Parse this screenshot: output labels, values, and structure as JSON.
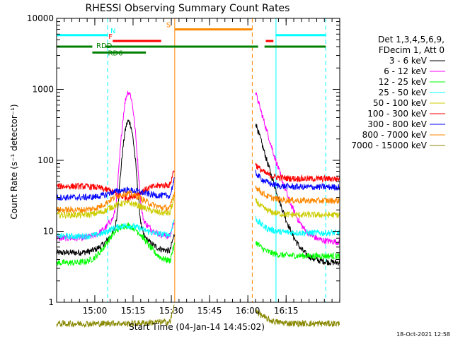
{
  "chart_data": {
    "type": "line",
    "title": "RHESSI Observing Summary Count Rates",
    "xlabel": "Start Time (04-Jan-14 14:45:02)",
    "ylabel": "Count Rate (s⁻¹ detector⁻¹)",
    "yscale": "log",
    "ylim": [
      1,
      10000
    ],
    "xlim_minutes_from_start": [
      0,
      111
    ],
    "x_ticks": [
      {
        "label": "15:00",
        "minute": 14.97
      },
      {
        "label": "15:15",
        "minute": 29.97
      },
      {
        "label": "15:30",
        "minute": 44.97
      },
      {
        "label": "15:45",
        "minute": 59.97
      },
      {
        "label": "16:00",
        "minute": 74.97
      },
      {
        "label": "16:15",
        "minute": 89.97
      }
    ],
    "y_ticks": [
      {
        "label": "1",
        "value": 1
      },
      {
        "label": "10",
        "value": 10
      },
      {
        "label": "100",
        "value": 100
      },
      {
        "label": "1000",
        "value": 1000
      },
      {
        "label": "10000",
        "value": 10000
      }
    ],
    "legend_header": [
      "Det 1,3,4,5,6,9,",
      "FDecim 1, Att 0"
    ],
    "legend_position": "right",
    "series": [
      {
        "name": "3 - 6 keV",
        "color": "#000000",
        "base_pre": 5,
        "base_post": 3.6,
        "peak": 380
      },
      {
        "name": "6 - 12 keV",
        "color": "#ff00ff",
        "base_pre": 8,
        "base_post": 7,
        "peak": 1000
      },
      {
        "name": "12 - 25 keV",
        "color": "#00ff00",
        "base_pre": 3.6,
        "base_post": 4.5,
        "peak": 12
      },
      {
        "name": "25 - 50 keV",
        "color": "#00ffff",
        "base_pre": 8.5,
        "base_post": 9.5,
        "peak": 12
      },
      {
        "name": "50 - 100 keV",
        "color": "#cccc00",
        "base_pre": 17,
        "base_post": 17,
        "peak": 25
      },
      {
        "name": "100 - 300 keV",
        "color": "#ff0000",
        "base_pre": 43,
        "base_post": 55,
        "peak": 30
      },
      {
        "name": "300 - 800 keV",
        "color": "#0000ff",
        "base_pre": 30,
        "base_post": 42,
        "peak": 38
      },
      {
        "name": "800 - 7000 keV",
        "color": "#ff8800",
        "base_pre": 20,
        "base_post": 27,
        "peak": 34
      },
      {
        "name": "7000 - 15000 keV",
        "color": "#888800",
        "base_pre": 0.5,
        "base_post": 0.5,
        "peak": 0.5
      }
    ],
    "vertical_markers": [
      {
        "minute": 0,
        "color": "#00ffff",
        "style": "solid"
      },
      {
        "minute": 20.0,
        "color": "#00ffff",
        "style": "dashed"
      },
      {
        "minute": 46.3,
        "color": "#ff8800",
        "style": "solid"
      },
      {
        "minute": 76.7,
        "color": "#ff8800",
        "style": "dashed"
      },
      {
        "minute": 86.0,
        "color": "#00ffff",
        "style": "solid"
      },
      {
        "minute": 105.5,
        "color": "#00ffff",
        "style": "dashed"
      }
    ],
    "state_bars": [
      {
        "label": "N",
        "color": "#00ffff",
        "value": 5800,
        "segments": [
          [
            0,
            20.0
          ],
          [
            86.0,
            105.5
          ]
        ]
      },
      {
        "label": "F",
        "color": "#ff0000",
        "value": 4800,
        "segments": [
          [
            22,
            41
          ],
          [
            82,
            85
          ]
        ]
      },
      {
        "label": "S",
        "color": "#ff8800",
        "value": 7000,
        "segments": [
          [
            46.3,
            76.7
          ]
        ]
      },
      {
        "label": "RDD",
        "color": "#008000",
        "value": 4000,
        "segments": [
          [
            0,
            14
          ],
          [
            19,
            79
          ],
          [
            81.5,
            105.5
          ]
        ]
      },
      {
        "label": "RD6",
        "color": "#008000",
        "value": 3300,
        "segments": [
          [
            14,
            35
          ]
        ]
      }
    ],
    "data_gaps_minutes": [
      [
        46.3,
        78
      ]
    ],
    "footer_date": "18-Oct-2021 12:58"
  }
}
